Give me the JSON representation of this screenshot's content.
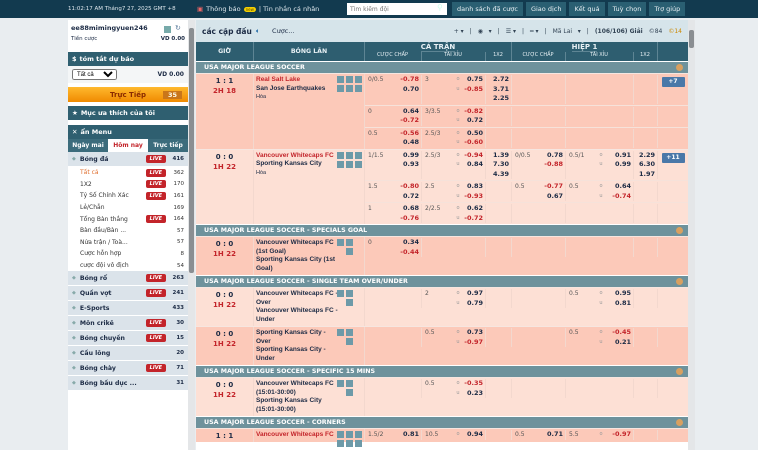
{
  "topbar": {
    "clock": "11:02:17 AM Tháng7 27, 2025 GMT +8",
    "notice": "Thông báo",
    "new": "new",
    "messages": "| Tin nhắn cá nhân",
    "search_placeholder": "Tìm kiếm đội",
    "buttons": [
      "danh sách đã cược",
      "Giao dịch",
      "Kết quả",
      "Tuỳ chọn",
      "Trợ giúp"
    ]
  },
  "sidebar": {
    "username": "ee88mimingyuen246",
    "bet_label": "Tiền cược",
    "bet_value": "VD 0.00",
    "summary_title": "tóm tắt dự báo",
    "select_value": "Tất cả",
    "summary_value": "VD 0.00",
    "live_label": "Trực Tiếp",
    "live_count": "35",
    "favorites": "Mục ưa thích của tôi",
    "hide_menu": "ẩn Menu",
    "tabs": [
      "Ngày mai",
      "Hôm nay",
      "Trực tiếp"
    ],
    "active_tab": 1,
    "live_badge": "LIVE",
    "soccer": {
      "name": "Bóng đá",
      "live": true,
      "count": "416"
    },
    "soccer_subs": [
      {
        "name": "Tất cả",
        "live": true,
        "count": "362"
      },
      {
        "name": "1X2",
        "live": true,
        "count": "170"
      },
      {
        "name": "Tỷ Số Chính Xác",
        "live": true,
        "count": "161"
      },
      {
        "name": "Lẻ/Chẵn",
        "live": false,
        "count": "169"
      },
      {
        "name": "Tổng Bàn thắng",
        "live": true,
        "count": "164"
      },
      {
        "name": "Bàn đầu/Bàn ...",
        "live": false,
        "count": "57"
      },
      {
        "name": "Nửa trận / Toà...",
        "live": false,
        "count": "57"
      },
      {
        "name": "Cược hỗn hợp",
        "live": false,
        "count": "8"
      },
      {
        "name": "cược đội vô địch",
        "live": false,
        "count": "54"
      }
    ],
    "sports": [
      {
        "name": "Bóng rổ",
        "live": true,
        "count": "263"
      },
      {
        "name": "Quần vợt",
        "live": true,
        "count": "241"
      },
      {
        "name": "E-Sports",
        "live": false,
        "count": "433"
      },
      {
        "name": "Môn crikê",
        "live": true,
        "count": "30"
      },
      {
        "name": "Bóng chuyền",
        "live": true,
        "count": "15"
      },
      {
        "name": "Cầu lông",
        "live": false,
        "count": "20"
      },
      {
        "name": "Bóng chày",
        "live": true,
        "count": "71"
      },
      {
        "name": "Bóng bầu dục ...",
        "live": false,
        "count": "31"
      }
    ]
  },
  "main": {
    "title": "các cặp đấu",
    "bet": "Cược...",
    "odds_type": "Mã Lai",
    "leagues_count": "(106/106) Giải",
    "c1": "©84",
    "c2": "©14",
    "headers": {
      "time": "GIỜ",
      "live": "BÓNG LĂN",
      "full": "CẢ TRẬN",
      "half": "HIỆP 1",
      "hdp": "CƯỢC CHẤP",
      "ou": "TÀI XỈU",
      "x12": "1X2"
    },
    "colors": {
      "header": "#2e5e70",
      "league": "#6e929c",
      "row": "#fcc9b9",
      "row_alt": "#fde0d5",
      "negative": "#c3242a"
    },
    "leagues": [
      {
        "name": "USA MAJOR LEAGUE SOCCER",
        "matches": [
          {
            "score": "1 : 1",
            "time": "2H 18",
            "home": "Real Salt Lake",
            "away": "San Jose Earthquakes",
            "draw": "Hòa",
            "more": "+7",
            "alt": false,
            "rows": [
              {
                "hdp": [
                  "0/0.5",
                  "-0.78",
                  "0.70"
                ],
                "ou": [
                  "3",
                  "0.75",
                  "-0.85"
                ],
                "x12": [
                  "2.72",
                  "3.71",
                  "2.25"
                ]
              },
              {
                "hdp": [
                  "0",
                  "0.64",
                  "-0.72"
                ],
                "ou": [
                  "3/3.5",
                  "-0.82",
                  "0.72"
                ]
              },
              {
                "hdp": [
                  "0.5",
                  "-0.56",
                  "0.48"
                ],
                "ou": [
                  "2.5/3",
                  "0.50",
                  "-0.60"
                ]
              }
            ]
          },
          {
            "score": "0 : 0",
            "time": "1H 22",
            "home": "Vancouver Whitecaps FC",
            "away": "Sporting Kansas City",
            "draw": "Hòa",
            "more": "+11",
            "alt": true,
            "rows": [
              {
                "hdp": [
                  "1/1.5",
                  "0.99",
                  "0.93"
                ],
                "ou": [
                  "2.5/3",
                  "-0.94",
                  "0.84"
                ],
                "x12": [
                  "1.39",
                  "7.30",
                  "4.39"
                ],
                "h1hdp": [
                  "0/0.5",
                  "0.78",
                  "-0.88"
                ],
                "h1ou": [
                  "0.5/1",
                  "0.91",
                  "0.99"
                ],
                "h1x12": [
                  "2.29",
                  "6.30",
                  "1.97"
                ]
              },
              {
                "hdp": [
                  "1.5",
                  "-0.80",
                  "0.72"
                ],
                "ou": [
                  "2.5",
                  "0.83",
                  "-0.93"
                ],
                "h1hdp": [
                  "0.5",
                  "-0.77",
                  "0.67"
                ],
                "h1ou": [
                  "0.5",
                  "0.64",
                  "-0.74"
                ]
              },
              {
                "hdp": [
                  "1",
                  "0.68",
                  "-0.76"
                ],
                "ou": [
                  "2/2.5",
                  "0.62",
                  "-0.72"
                ]
              }
            ]
          }
        ]
      },
      {
        "name": "USA MAJOR LEAGUE SOCCER - SPECIALS GOAL",
        "matches": [
          {
            "score": "0 : 0",
            "time": "1H 22",
            "home": "Vancouver Whitecaps FC (1st Goal)",
            "away": "Sporting Kansas City (1st Goal)",
            "alt": false,
            "plain": true,
            "rows": [
              {
                "hdp": [
                  "0",
                  "0.34",
                  "-0.44"
                ]
              }
            ]
          }
        ]
      },
      {
        "name": "USA MAJOR LEAGUE SOCCER - SINGLE TEAM OVER/UNDER",
        "matches": [
          {
            "score": "0 : 0",
            "time": "1H 22",
            "home": "Vancouver Whitecaps FC - Over",
            "away": "Vancouver Whitecaps FC - Under",
            "alt": true,
            "plain": true,
            "rows": [
              {
                "ou": [
                  "2",
                  "0.97",
                  "0.79"
                ],
                "h1ou": [
                  "0.5",
                  "0.95",
                  "0.81"
                ]
              }
            ]
          },
          {
            "score": "0 : 0",
            "time": "1H 22",
            "home": "Sporting Kansas City - Over",
            "away": "Sporting Kansas City - Under",
            "alt": false,
            "plain": true,
            "rows": [
              {
                "ou": [
                  "0.5",
                  "0.73",
                  "-0.97"
                ],
                "h1ou": [
                  "0.5",
                  "-0.45",
                  "0.21"
                ]
              }
            ]
          }
        ]
      },
      {
        "name": "USA MAJOR LEAGUE SOCCER - SPECIFIC 15 MINS",
        "matches": [
          {
            "score": "0 : 0",
            "time": "1H 22",
            "home": "Vancouver Whitecaps FC (15:01-30:00)",
            "away": "Sporting Kansas City (15:01-30:00)",
            "alt": true,
            "plain": true,
            "rows": [
              {
                "ou": [
                  "0.5",
                  "-0.35",
                  "0.23"
                ]
              }
            ]
          }
        ]
      },
      {
        "name": "USA MAJOR LEAGUE SOCCER - CORNERS",
        "matches": [
          {
            "score": "1 : 1",
            "time": "",
            "home": "Vancouver Whitecaps FC",
            "away": "",
            "alt": false,
            "plain": false,
            "rows": [
              {
                "hdp": [
                  "1.5/2",
                  "0.81",
                  ""
                ],
                "ou": [
                  "10.5",
                  "0.94",
                  ""
                ],
                "h1hdp": [
                  "0.5",
                  "0.71",
                  ""
                ],
                "h1ou": [
                  "5.5",
                  "-0.97",
                  ""
                ]
              }
            ]
          }
        ]
      }
    ]
  }
}
